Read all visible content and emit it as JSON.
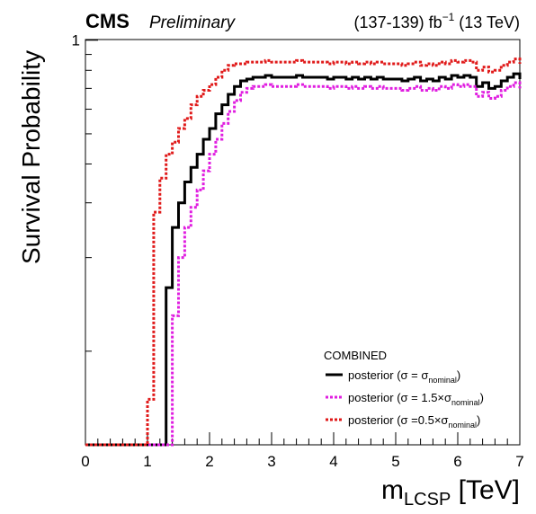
{
  "header": {
    "experiment": "CMS",
    "status": "Preliminary",
    "lumi_prefix": "(137-139) fb",
    "lumi_exp": "−1",
    "lumi_suffix": " (13 TeV)"
  },
  "legend": {
    "title": "COMBINED",
    "entries": [
      {
        "prefix": "posterior (σ = σ",
        "sub": "nominal",
        "suffix": ")"
      },
      {
        "prefix": "posterior (σ = 1.5×σ",
        "sub": "nominal",
        "suffix": ")"
      },
      {
        "prefix": "posterior (σ =0.5×σ",
        "sub": "nominal",
        "suffix": ")"
      }
    ]
  },
  "chart_data": {
    "type": "line",
    "style": "step-histogram",
    "ylabel": "Survival Probability",
    "xlabel_main": "m",
    "xlabel_sub": "LCSP",
    "xlabel_unit": " [TeV]",
    "xlim": [
      0,
      7
    ],
    "ylim": [
      0,
      1.005
    ],
    "log_y": true,
    "x_ticks": [
      "0",
      "1",
      "2",
      "3",
      "4",
      "5",
      "6",
      "7"
    ],
    "y_ticks": [
      "1"
    ],
    "bin_width": 0.1,
    "bin_start": 0.0,
    "series": [
      {
        "color": "#000000",
        "dash": "solid",
        "values": [
          0.05,
          0.05,
          0.05,
          0.05,
          0.05,
          0.05,
          0.05,
          0.05,
          0.05,
          0.05,
          0.05,
          0.05,
          0.05,
          0.16,
          0.25,
          0.3,
          0.35,
          0.39,
          0.43,
          0.48,
          0.52,
          0.58,
          0.62,
          0.67,
          0.71,
          0.74,
          0.75,
          0.76,
          0.76,
          0.77,
          0.76,
          0.76,
          0.76,
          0.76,
          0.77,
          0.76,
          0.76,
          0.76,
          0.76,
          0.75,
          0.76,
          0.76,
          0.75,
          0.76,
          0.75,
          0.76,
          0.75,
          0.76,
          0.75,
          0.75,
          0.75,
          0.74,
          0.75,
          0.76,
          0.74,
          0.75,
          0.74,
          0.76,
          0.75,
          0.77,
          0.76,
          0.77,
          0.76,
          0.71,
          0.73,
          0.7,
          0.71,
          0.74,
          0.76,
          0.78,
          0.75
        ]
      },
      {
        "color": "#e01ee0",
        "dash": "dotted",
        "values": [
          0.05,
          0.05,
          0.05,
          0.05,
          0.05,
          0.05,
          0.05,
          0.05,
          0.05,
          0.05,
          0.05,
          0.05,
          0.05,
          0.05,
          0.13,
          0.2,
          0.25,
          0.29,
          0.33,
          0.38,
          0.43,
          0.48,
          0.54,
          0.59,
          0.64,
          0.68,
          0.7,
          0.71,
          0.71,
          0.72,
          0.71,
          0.71,
          0.71,
          0.71,
          0.72,
          0.71,
          0.71,
          0.71,
          0.71,
          0.7,
          0.71,
          0.71,
          0.7,
          0.71,
          0.7,
          0.71,
          0.7,
          0.71,
          0.7,
          0.7,
          0.7,
          0.69,
          0.7,
          0.71,
          0.69,
          0.7,
          0.69,
          0.71,
          0.7,
          0.72,
          0.71,
          0.72,
          0.71,
          0.66,
          0.68,
          0.65,
          0.66,
          0.69,
          0.71,
          0.73,
          0.7
        ]
      },
      {
        "color": "#e01a1a",
        "dash": "dotted",
        "values": [
          0.05,
          0.05,
          0.05,
          0.05,
          0.05,
          0.05,
          0.05,
          0.05,
          0.05,
          0.05,
          0.07,
          0.28,
          0.36,
          0.43,
          0.47,
          0.52,
          0.56,
          0.62,
          0.66,
          0.69,
          0.72,
          0.76,
          0.8,
          0.83,
          0.84,
          0.84,
          0.85,
          0.85,
          0.85,
          0.86,
          0.85,
          0.85,
          0.85,
          0.85,
          0.86,
          0.85,
          0.85,
          0.85,
          0.85,
          0.84,
          0.85,
          0.85,
          0.84,
          0.85,
          0.84,
          0.85,
          0.84,
          0.85,
          0.84,
          0.84,
          0.84,
          0.83,
          0.84,
          0.85,
          0.83,
          0.84,
          0.83,
          0.85,
          0.84,
          0.86,
          0.85,
          0.86,
          0.85,
          0.8,
          0.82,
          0.79,
          0.8,
          0.83,
          0.85,
          0.87,
          0.84
        ]
      }
    ]
  }
}
